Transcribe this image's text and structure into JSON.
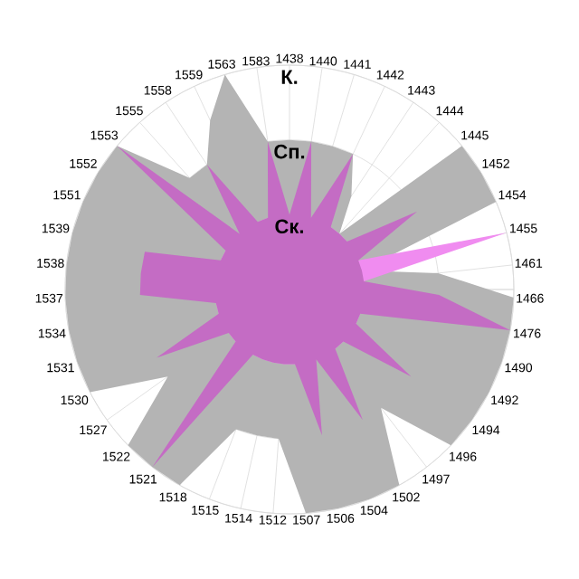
{
  "chart_data": {
    "type": "radar",
    "categories": [
      "1438",
      "1440",
      "1441",
      "1442",
      "1443",
      "1444",
      "1445",
      "1452",
      "1454",
      "1455",
      "1461",
      "1466",
      "1476",
      "1490",
      "1492",
      "1494",
      "1496",
      "1497",
      "1502",
      "1504",
      "1506",
      "1507",
      "1512",
      "1514",
      "1515",
      "1518",
      "1521",
      "1522",
      "1527",
      "1530",
      "1531",
      "1534",
      "1537",
      "1538",
      "1539",
      "1551",
      "1552",
      "1553",
      "1555",
      "1558",
      "1559",
      "1563",
      "1583"
    ],
    "ylim": [
      0,
      3
    ],
    "yticks": [
      {
        "value": 1,
        "label": "Ск."
      },
      {
        "value": 2,
        "label": "Сп."
      },
      {
        "value": 3,
        "label": "К."
      }
    ],
    "grid": true,
    "series": [
      {
        "color": "#b4b4b4",
        "values": [
          2,
          2,
          2,
          2,
          1.5,
          1,
          3,
          3,
          3,
          1,
          2,
          3,
          3,
          3,
          3,
          3,
          3,
          2,
          3,
          3,
          3,
          3,
          2,
          2,
          2,
          3,
          3,
          3,
          2,
          3,
          3,
          3,
          3,
          3,
          3,
          3,
          3,
          3,
          2,
          2,
          2.5,
          3,
          2
        ]
      },
      {
        "color": "#f08cf0",
        "values": [
          1,
          1,
          1,
          1,
          1,
          1,
          1,
          1,
          1,
          3,
          1,
          1,
          1,
          1,
          1,
          1,
          1,
          1,
          1,
          1,
          1,
          1,
          1,
          1,
          1,
          1,
          1,
          1,
          1,
          1,
          1,
          1,
          1,
          1,
          1,
          1,
          1,
          1,
          1,
          1,
          1,
          1,
          1
        ]
      },
      {
        "color": "#c46cc4",
        "values": [
          1,
          2,
          1,
          2,
          1,
          1,
          1,
          2,
          1,
          1,
          1,
          2,
          3,
          1,
          1,
          2,
          1,
          1,
          2,
          1,
          2,
          1,
          1,
          1,
          1,
          1,
          3,
          1,
          1,
          2,
          1,
          1,
          2,
          2,
          2,
          1,
          1,
          3,
          1,
          2,
          1,
          1,
          2
        ]
      }
    ]
  }
}
